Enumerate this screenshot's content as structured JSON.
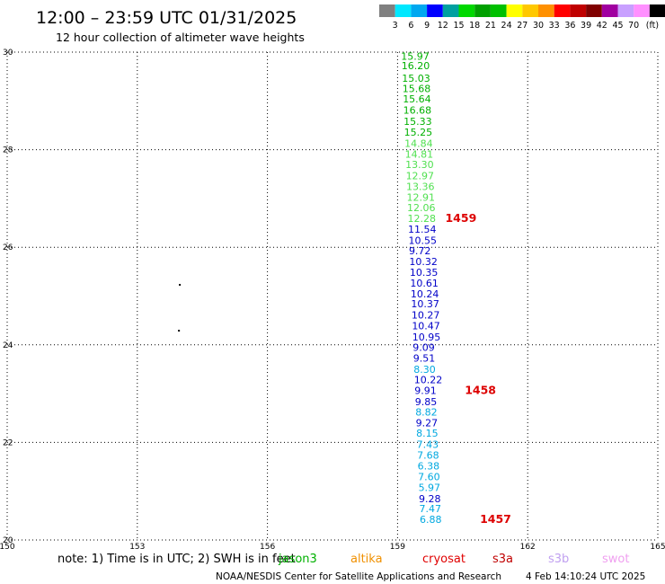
{
  "header": {
    "title": "12:00 – 23:59 UTC 01/31/2025",
    "subtitle": "12 hour collection of altimeter wave heights"
  },
  "color_scale": {
    "labels": [
      "3",
      "6",
      "9",
      "12",
      "15",
      "18",
      "21",
      "24",
      "27",
      "30",
      "33",
      "36",
      "39",
      "42",
      "45",
      "70",
      "(ft)"
    ],
    "colors": [
      "#808080",
      "#00e8ff",
      "#00a8f0",
      "#0000ff",
      "#00a0a0",
      "#00d800",
      "#00a000",
      "#00c000",
      "#ffff00",
      "#ffc800",
      "#ff9000",
      "#ff0000",
      "#c00000",
      "#800000",
      "#a000a0",
      "#c8a0ff",
      "#ff90ff",
      "#000000"
    ]
  },
  "footer": {
    "note": "note:  1) Time is in UTC;  2) SWH is in feet",
    "satellites": [
      {
        "name": "jason3",
        "color": "#00b000"
      },
      {
        "name": "altika",
        "color": "#f09000"
      },
      {
        "name": "cryosat",
        "color": "#e00000"
      },
      {
        "name": "s3a",
        "color": "#c00000"
      },
      {
        "name": "s3b",
        "color": "#c0a0f0"
      },
      {
        "name": "swot",
        "color": "#f0a0f0"
      }
    ],
    "credit": "NOAA/NESDIS Center for Satellite Applications and Research",
    "timestamp": "4 Feb 14:10:24 UTC 2025"
  },
  "chart_data": {
    "type": "scatter",
    "title": "12:00 – 23:59 UTC 01/31/2025",
    "x_ticks": [
      150,
      153,
      156,
      159,
      162,
      165
    ],
    "x_tick_labels": [
      "150",
      "153",
      "156",
      "159",
      "162",
      "165"
    ],
    "y_ticks": [
      20,
      22,
      24,
      26,
      28,
      30
    ],
    "y_tick_labels": [
      "20",
      "22",
      "24",
      "26",
      "28",
      "30"
    ],
    "xlim": [
      150,
      165
    ],
    "ylim": [
      20,
      30
    ],
    "grid": true,
    "points": [
      {
        "lon": 159.08,
        "lat": 29.92,
        "label": "15.97",
        "color": "#00b000"
      },
      {
        "lon": 159.09,
        "lat": 29.72,
        "label": "16.20",
        "color": "#00b000"
      },
      {
        "lon": 159.1,
        "lat": 29.47,
        "label": "15.03",
        "color": "#00b000"
      },
      {
        "lon": 159.11,
        "lat": 29.25,
        "label": "15.68",
        "color": "#00b000"
      },
      {
        "lon": 159.12,
        "lat": 29.04,
        "label": "15.64",
        "color": "#00b000"
      },
      {
        "lon": 159.13,
        "lat": 28.81,
        "label": "16.68",
        "color": "#00b000"
      },
      {
        "lon": 159.14,
        "lat": 28.58,
        "label": "15.33",
        "color": "#00b000"
      },
      {
        "lon": 159.15,
        "lat": 28.36,
        "label": "15.25",
        "color": "#00b000"
      },
      {
        "lon": 159.16,
        "lat": 28.13,
        "label": "14.84",
        "color": "#50e050"
      },
      {
        "lon": 159.17,
        "lat": 27.91,
        "label": "14.81",
        "color": "#50e050"
      },
      {
        "lon": 159.18,
        "lat": 27.7,
        "label": "13.30",
        "color": "#50e050"
      },
      {
        "lon": 159.19,
        "lat": 27.47,
        "label": "12.97",
        "color": "#50e050"
      },
      {
        "lon": 159.2,
        "lat": 27.25,
        "label": "13.36",
        "color": "#50e050"
      },
      {
        "lon": 159.21,
        "lat": 27.03,
        "label": "12.91",
        "color": "#50e050"
      },
      {
        "lon": 159.22,
        "lat": 26.81,
        "label": "12.06",
        "color": "#50e050"
      },
      {
        "lon": 159.23,
        "lat": 26.59,
        "label": "12.28",
        "color": "#50e050"
      },
      {
        "lon": 159.24,
        "lat": 26.37,
        "label": "11.54",
        "color": "#0000c8"
      },
      {
        "lon": 159.25,
        "lat": 26.14,
        "label": "10.55",
        "color": "#0000c8"
      },
      {
        "lon": 159.26,
        "lat": 25.93,
        "label": "9.72",
        "color": "#0000c8"
      },
      {
        "lon": 159.27,
        "lat": 25.71,
        "label": "10.32",
        "color": "#0000c8"
      },
      {
        "lon": 159.28,
        "lat": 25.49,
        "label": "10.35",
        "color": "#0000c8"
      },
      {
        "lon": 159.29,
        "lat": 25.27,
        "label": "10.61",
        "color": "#0000c8"
      },
      {
        "lon": 159.3,
        "lat": 25.05,
        "label": "10.24",
        "color": "#0000c8"
      },
      {
        "lon": 159.31,
        "lat": 24.84,
        "label": "10.37",
        "color": "#0000c8"
      },
      {
        "lon": 159.32,
        "lat": 24.61,
        "label": "10.27",
        "color": "#0000c8"
      },
      {
        "lon": 159.33,
        "lat": 24.39,
        "label": "10.47",
        "color": "#0000c8"
      },
      {
        "lon": 159.34,
        "lat": 24.16,
        "label": "10.95",
        "color": "#0000c8"
      },
      {
        "lon": 159.35,
        "lat": 23.95,
        "label": "9.09",
        "color": "#0000c8"
      },
      {
        "lon": 159.36,
        "lat": 23.73,
        "label": "9.51",
        "color": "#0000c8"
      },
      {
        "lon": 159.37,
        "lat": 23.5,
        "label": "8.30",
        "color": "#00a8e0"
      },
      {
        "lon": 159.38,
        "lat": 23.29,
        "label": "10.22",
        "color": "#0000c8"
      },
      {
        "lon": 159.39,
        "lat": 23.07,
        "label": "9.91",
        "color": "#0000c8"
      },
      {
        "lon": 159.4,
        "lat": 22.84,
        "label": "9.85",
        "color": "#0000c8"
      },
      {
        "lon": 159.41,
        "lat": 22.62,
        "label": "8.82",
        "color": "#00a8e0"
      },
      {
        "lon": 159.42,
        "lat": 22.4,
        "label": "9.27",
        "color": "#0000c8"
      },
      {
        "lon": 159.43,
        "lat": 22.19,
        "label": "8.15",
        "color": "#00a8e0"
      },
      {
        "lon": 159.44,
        "lat": 21.96,
        "label": "7.43",
        "color": "#00a8e0"
      },
      {
        "lon": 159.45,
        "lat": 21.74,
        "label": "7.68",
        "color": "#00a8e0"
      },
      {
        "lon": 159.46,
        "lat": 21.52,
        "label": "6.38",
        "color": "#00a8e0"
      },
      {
        "lon": 159.47,
        "lat": 21.3,
        "label": "7.60",
        "color": "#00a8e0"
      },
      {
        "lon": 159.48,
        "lat": 21.08,
        "label": "5.97",
        "color": "#00a8e0"
      },
      {
        "lon": 159.49,
        "lat": 20.85,
        "label": "9.28",
        "color": "#0000c8"
      },
      {
        "lon": 159.5,
        "lat": 20.64,
        "label": "7.47",
        "color": "#00a8e0"
      },
      {
        "lon": 159.51,
        "lat": 20.42,
        "label": "6.88",
        "color": "#00a8e0"
      }
    ],
    "time_labels": [
      {
        "lon": 160.1,
        "lat": 26.59,
        "label": "1459"
      },
      {
        "lon": 160.55,
        "lat": 23.07,
        "label": "1458"
      },
      {
        "lon": 160.9,
        "lat": 20.42,
        "label": "1457"
      }
    ],
    "dots": [
      {
        "lon": 153.98,
        "lat": 25.23
      },
      {
        "lon": 153.96,
        "lat": 24.29
      }
    ]
  }
}
